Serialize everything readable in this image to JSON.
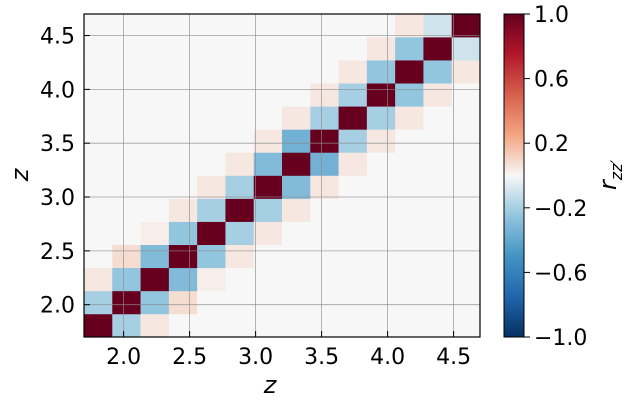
{
  "chart_data": {
    "type": "heatmap",
    "title": "",
    "xlabel": "z",
    "ylabel": "z",
    "xlim": [
      1.7,
      4.7
    ],
    "ylim": [
      1.7,
      4.7
    ],
    "bins": 14,
    "xticks": [
      "2.0",
      "2.5",
      "3.0",
      "3.5",
      "4.0",
      "4.5"
    ],
    "yticks": [
      "2.0",
      "2.5",
      "3.0",
      "3.5",
      "4.0",
      "4.5"
    ],
    "grid": true,
    "colormap": "RdBu_r",
    "colorbar": {
      "label_base": "r",
      "label_subscript": "zz′",
      "range": [
        -1.0,
        1.0
      ],
      "ticks": [
        "1.0",
        "0.6",
        "0.2",
        "−0.2",
        "−0.6",
        "−1.0"
      ],
      "tick_values": [
        1.0,
        0.6,
        0.2,
        -0.2,
        -0.6,
        -1.0
      ]
    },
    "matrix_description": "row i is the z bin from the bottom, column j is the z bin from the left; values are correlation coefficients",
    "values": [
      [
        1.0,
        -0.2,
        0.05,
        0.0,
        0.0,
        0.0,
        0.0,
        0.0,
        0.0,
        0.0,
        0.0,
        0.0,
        0.0,
        0.0
      ],
      [
        -0.2,
        1.0,
        -0.25,
        0.08,
        0.0,
        0.0,
        0.0,
        0.0,
        0.0,
        0.0,
        0.0,
        0.0,
        0.0,
        0.0
      ],
      [
        0.05,
        -0.25,
        1.0,
        -0.3,
        0.03,
        0.0,
        0.0,
        0.0,
        0.0,
        0.0,
        0.0,
        0.0,
        0.0,
        0.0
      ],
      [
        0.0,
        0.08,
        -0.3,
        1.0,
        -0.25,
        0.05,
        0.0,
        0.0,
        0.0,
        0.0,
        0.0,
        0.0,
        0.0,
        0.0
      ],
      [
        0.0,
        0.0,
        0.03,
        -0.25,
        1.0,
        -0.2,
        0.05,
        0.0,
        0.0,
        0.0,
        0.0,
        0.0,
        0.0,
        0.0
      ],
      [
        0.0,
        0.0,
        0.0,
        0.05,
        -0.2,
        1.0,
        -0.2,
        0.05,
        0.0,
        0.0,
        0.0,
        0.0,
        0.0,
        0.0
      ],
      [
        0.0,
        0.0,
        0.0,
        0.0,
        0.05,
        -0.2,
        1.0,
        -0.3,
        0.05,
        0.0,
        0.0,
        0.0,
        0.0,
        0.0
      ],
      [
        0.0,
        0.0,
        0.0,
        0.0,
        0.0,
        0.05,
        -0.3,
        1.0,
        -0.35,
        0.05,
        0.0,
        0.0,
        0.0,
        0.0
      ],
      [
        0.0,
        0.0,
        0.0,
        0.0,
        0.0,
        0.0,
        0.05,
        -0.35,
        1.0,
        -0.2,
        0.05,
        0.0,
        0.0,
        0.0
      ],
      [
        0.0,
        0.0,
        0.0,
        0.0,
        0.0,
        0.0,
        0.0,
        0.05,
        -0.2,
        1.0,
        -0.2,
        0.05,
        0.0,
        0.0
      ],
      [
        0.0,
        0.0,
        0.0,
        0.0,
        0.0,
        0.0,
        0.0,
        0.0,
        0.05,
        -0.2,
        1.0,
        -0.25,
        0.05,
        0.0
      ],
      [
        0.0,
        0.0,
        0.0,
        0.0,
        0.0,
        0.0,
        0.0,
        0.0,
        0.0,
        0.05,
        -0.25,
        1.0,
        -0.25,
        0.05
      ],
      [
        0.0,
        0.0,
        0.0,
        0.0,
        0.0,
        0.0,
        0.0,
        0.0,
        0.0,
        0.0,
        0.05,
        -0.25,
        1.0,
        -0.1
      ],
      [
        0.0,
        0.0,
        0.0,
        0.0,
        0.0,
        0.0,
        0.0,
        0.0,
        0.0,
        0.0,
        0.0,
        0.05,
        -0.1,
        1.0
      ]
    ]
  }
}
